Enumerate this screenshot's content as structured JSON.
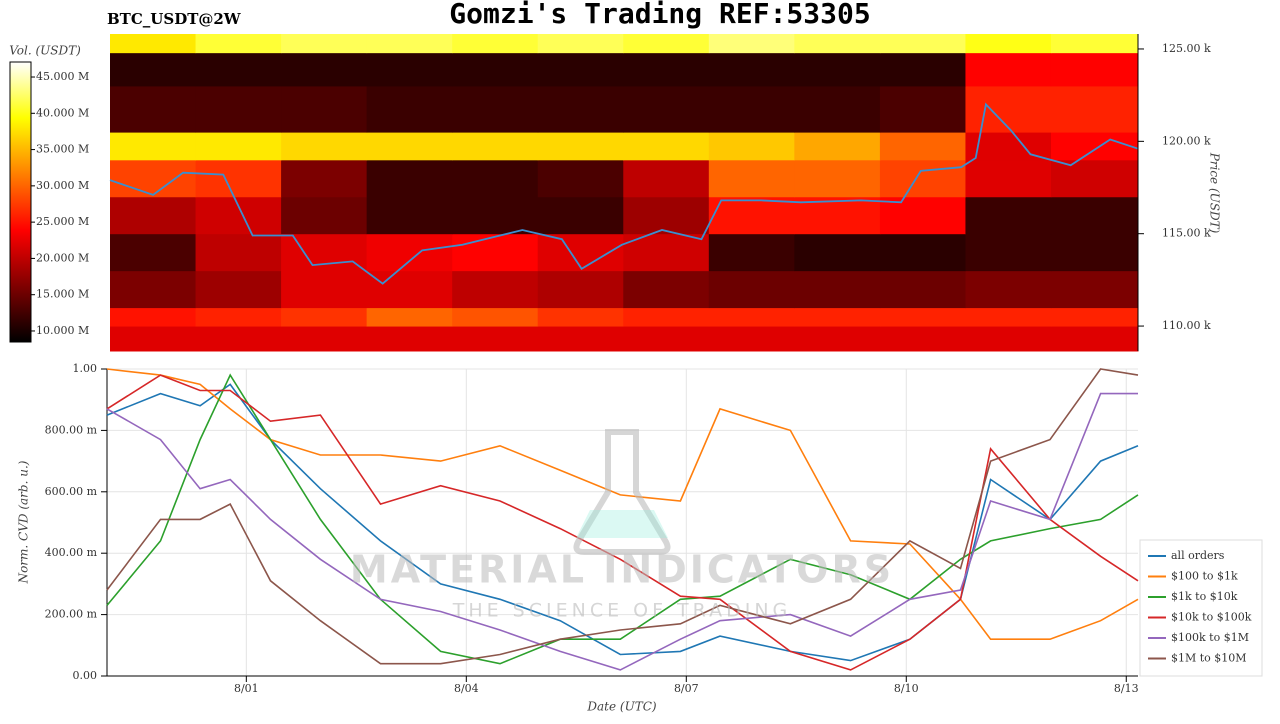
{
  "header": {
    "title": "Gomzi's Trading REF:53305",
    "symbol": "BTC_USDT@2W"
  },
  "watermark": {
    "brand": "MATERIAL INDICATORS",
    "tagline": "THE SCIENCE OF TRADING"
  },
  "chart_data": [
    {
      "type": "heatmap",
      "ylabel": "Price (USDT)",
      "colorbar_label": "Vol. (USDT)",
      "xlim": [
        -1.9,
        12.16
      ],
      "ylim": [
        108650,
        125810
      ],
      "yticks": [
        {
          "value": 110000,
          "label": "110.00 k"
        },
        {
          "value": 115000,
          "label": "115.00 k"
        },
        {
          "value": 120000,
          "label": "120.00 k"
        },
        {
          "value": 125000,
          "label": "125.00 k"
        }
      ],
      "zlim": [
        8480000,
        47070000
      ],
      "zticks": [
        {
          "value": 10000000,
          "label": "10.000 M"
        },
        {
          "value": 15000000,
          "label": "15.000 M"
        },
        {
          "value": 20000000,
          "label": "20.000 M"
        },
        {
          "value": 25000000,
          "label": "25.000 M"
        },
        {
          "value": 30000000,
          "label": "30.000 M"
        },
        {
          "value": 35000000,
          "label": "35.000 M"
        },
        {
          "value": 40000000,
          "label": "40.000 M"
        },
        {
          "value": 45000000,
          "label": "45.000 M"
        }
      ],
      "x_edges": [
        -1.9,
        -0.73,
        0.44,
        1.61,
        2.78,
        3.95,
        5.12,
        6.29,
        7.46,
        8.63,
        9.8,
        10.97,
        12.16
      ],
      "y_edges": [
        108650,
        110000,
        111000,
        113000,
        115000,
        117000,
        119000,
        120500,
        123000,
        124800,
        125810
      ],
      "z": [
        [
          22000000,
          22000000,
          22000000,
          22000000,
          22000000,
          22000000,
          22000000,
          22000000,
          22000000,
          22000000,
          22000000,
          22000000
        ],
        [
          25000000,
          26000000,
          27000000,
          30000000,
          29000000,
          27000000,
          26000000,
          26000000,
          26000000,
          26000000,
          26000000,
          26000000
        ],
        [
          16000000,
          18000000,
          22000000,
          22000000,
          20000000,
          19000000,
          16000000,
          15000000,
          15000000,
          15000000,
          16000000,
          16000000
        ],
        [
          13000000,
          20000000,
          22000000,
          23000000,
          24000000,
          22000000,
          21000000,
          12000000,
          11000000,
          11000000,
          12000000,
          12000000
        ],
        [
          19000000,
          21000000,
          15000000,
          12000000,
          12000000,
          12000000,
          18000000,
          25000000,
          25000000,
          24000000,
          12000000,
          12000000
        ],
        [
          28000000,
          27000000,
          16000000,
          12000000,
          12000000,
          13000000,
          20000000,
          30000000,
          30000000,
          28000000,
          22000000,
          21000000
        ],
        [
          38000000,
          38000000,
          37000000,
          37000000,
          37000000,
          37000000,
          37000000,
          36000000,
          34000000,
          30000000,
          22000000,
          24000000
        ],
        [
          13000000,
          13000000,
          13000000,
          12000000,
          12000000,
          12000000,
          12000000,
          12000000,
          12000000,
          13000000,
          26000000,
          26000000
        ],
        [
          11000000,
          11000000,
          11000000,
          11000000,
          11000000,
          11000000,
          11000000,
          11000000,
          11000000,
          11000000,
          24000000,
          24000000
        ],
        [
          38000000,
          41000000,
          42000000,
          42000000,
          41000000,
          42000000,
          41000000,
          43000000,
          42000000,
          42000000,
          40000000,
          41000000
        ]
      ],
      "series": [
        {
          "color": "#3a8fd0",
          "x": [
            -1.9,
            -1.31,
            -0.9,
            -0.35,
            0.05,
            0.6,
            0.87,
            1.42,
            1.83,
            2.37,
            2.92,
            3.74,
            4.28,
            4.55,
            5.1,
            5.65,
            6.19,
            6.46,
            7.01,
            7.55,
            8.37,
            8.92,
            9.19,
            9.74,
            9.94,
            10.08,
            10.42,
            10.69,
            11.24,
            11.78,
            12.16
          ],
          "values": [
            117900,
            117100,
            118300,
            118200,
            114900,
            114900,
            113300,
            113500,
            112300,
            114100,
            114400,
            115200,
            114700,
            113100,
            114400,
            115200,
            114700,
            116800,
            116800,
            116700,
            116800,
            116700,
            118400,
            118600,
            119100,
            122000,
            120600,
            119300,
            118700,
            120100,
            119600
          ]
        }
      ]
    },
    {
      "type": "line",
      "xlabel": "Date (UTC)",
      "ylabel": "Norm. CVD (arb. u.)",
      "xlim": [
        -1.9,
        12.16
      ],
      "ylim": [
        0,
        1
      ],
      "xticks": [
        {
          "value": 0,
          "label": "8/01"
        },
        {
          "value": 3,
          "label": "8/04"
        },
        {
          "value": 6,
          "label": "8/07"
        },
        {
          "value": 9,
          "label": "8/10"
        },
        {
          "value": 12,
          "label": "8/13"
        }
      ],
      "yticks": [
        {
          "value": 0,
          "label": "0.00"
        },
        {
          "value": 0.2,
          "label": "200.00 m"
        },
        {
          "value": 0.4,
          "label": "400.00 m"
        },
        {
          "value": 0.6,
          "label": "600.00 m"
        },
        {
          "value": 0.8,
          "label": "800.00 m"
        },
        {
          "value": 1,
          "label": "1.00"
        }
      ],
      "grid": true,
      "legend": "right",
      "x": [
        -1.9,
        -1.17,
        -0.63,
        -0.22,
        0.33,
        1.01,
        1.83,
        2.65,
        3.46,
        4.28,
        5.1,
        5.92,
        6.46,
        7.42,
        8.24,
        9.05,
        9.74,
        10.15,
        10.96,
        11.65,
        12.16
      ],
      "series": [
        {
          "name": "all orders",
          "color": "#1f77b4",
          "values": [
            0.85,
            0.92,
            0.88,
            0.95,
            0.77,
            0.61,
            0.44,
            0.3,
            0.25,
            0.18,
            0.07,
            0.08,
            0.13,
            0.08,
            0.05,
            0.12,
            0.25,
            0.64,
            0.51,
            0.7,
            0.75
          ]
        },
        {
          "name": "$100 to $1k",
          "color": "#ff7f0e",
          "values": [
            1.0,
            0.98,
            0.95,
            0.87,
            0.77,
            0.72,
            0.72,
            0.7,
            0.75,
            0.67,
            0.59,
            0.57,
            0.87,
            0.8,
            0.44,
            0.43,
            0.25,
            0.12,
            0.12,
            0.18,
            0.25
          ]
        },
        {
          "name": "$1k to $10k",
          "color": "#2ca02c",
          "values": [
            0.23,
            0.44,
            0.77,
            0.98,
            0.77,
            0.51,
            0.25,
            0.08,
            0.04,
            0.12,
            0.12,
            0.25,
            0.26,
            0.38,
            0.33,
            0.25,
            0.38,
            0.44,
            0.48,
            0.51,
            0.59
          ]
        },
        {
          "name": "$10k to $100k",
          "color": "#d62728",
          "values": [
            0.87,
            0.98,
            0.93,
            0.93,
            0.83,
            0.85,
            0.56,
            0.62,
            0.57,
            0.48,
            0.38,
            0.26,
            0.25,
            0.08,
            0.02,
            0.12,
            0.25,
            0.74,
            0.51,
            0.39,
            0.31
          ]
        },
        {
          "name": "$100k to $1M",
          "color": "#9467bd",
          "values": [
            0.87,
            0.77,
            0.61,
            0.64,
            0.51,
            0.38,
            0.25,
            0.21,
            0.15,
            0.08,
            0.02,
            0.12,
            0.18,
            0.2,
            0.13,
            0.25,
            0.28,
            0.57,
            0.51,
            0.92,
            0.92
          ]
        },
        {
          "name": "$1M to $10M",
          "color": "#8c564b",
          "values": [
            0.28,
            0.51,
            0.51,
            0.56,
            0.31,
            0.18,
            0.04,
            0.04,
            0.07,
            0.12,
            0.15,
            0.17,
            0.23,
            0.17,
            0.25,
            0.44,
            0.35,
            0.7,
            0.77,
            1.0,
            0.98
          ]
        }
      ]
    }
  ]
}
